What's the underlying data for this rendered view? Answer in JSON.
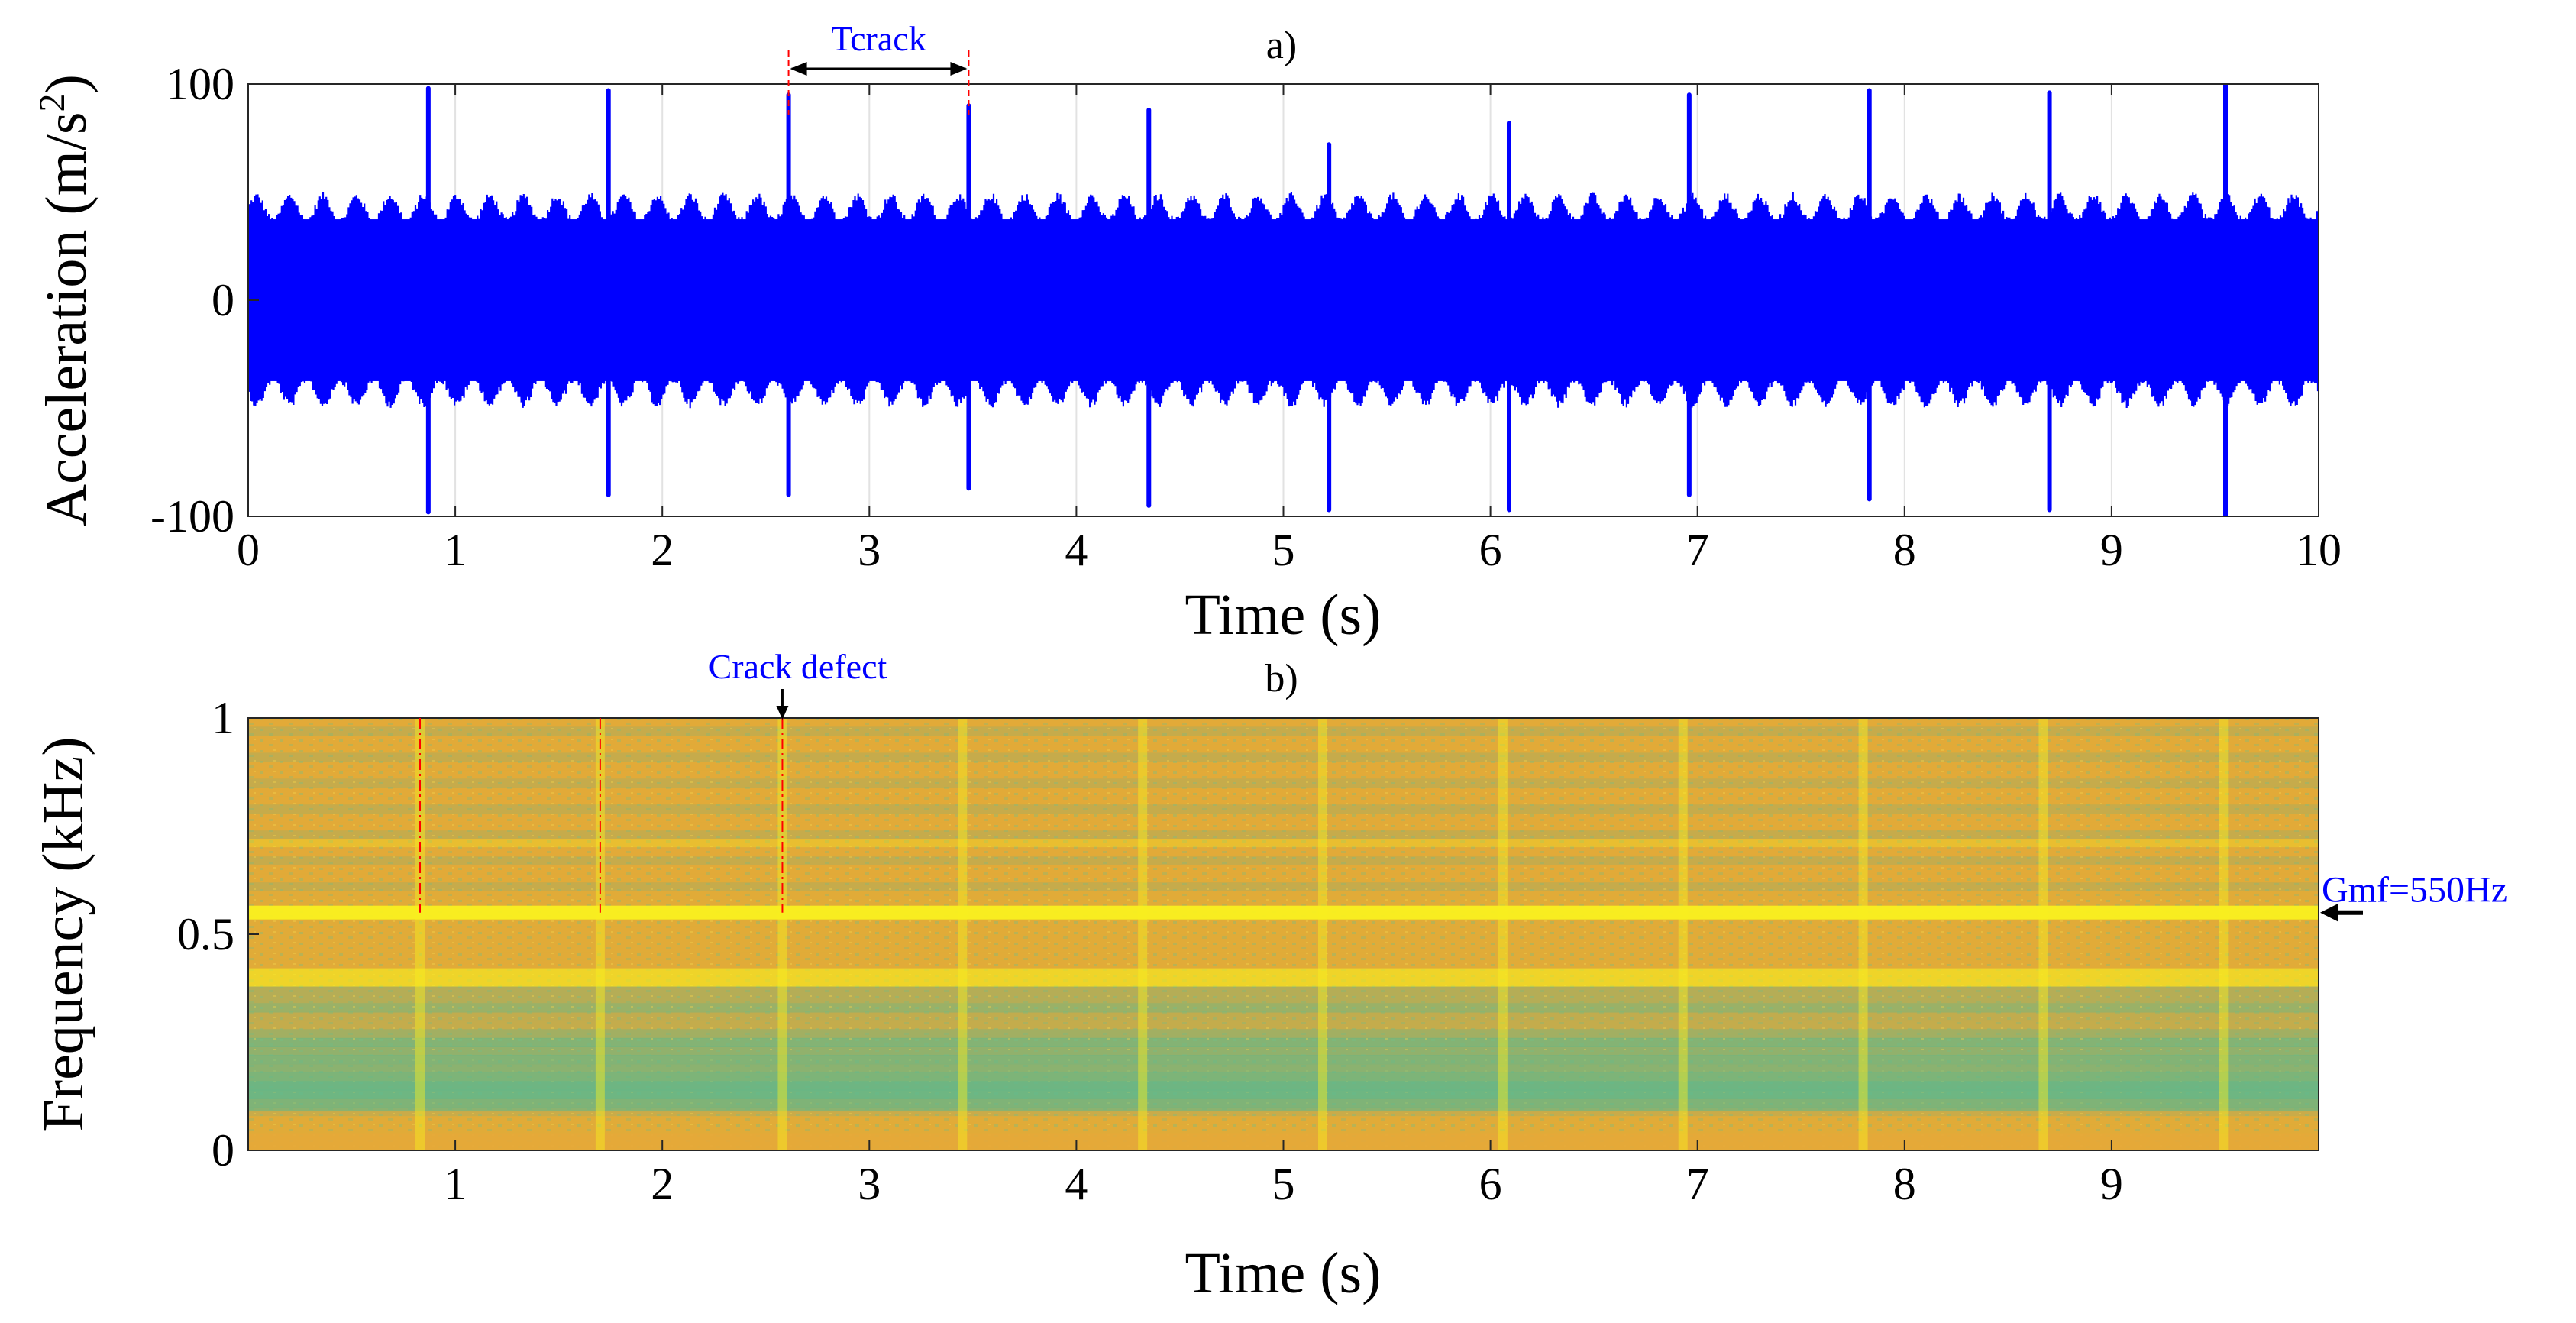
{
  "chart_data": [
    {
      "type": "line",
      "panel_label": "a)",
      "title": "",
      "xlabel": "Time (s)",
      "ylabel_main": "Acceleration (m/s",
      "ylabel_sup": "2",
      "ylabel_close": ")",
      "xlim": [
        0,
        10
      ],
      "ylim": [
        -100,
        100
      ],
      "xticks": [
        0,
        1,
        2,
        3,
        4,
        5,
        6,
        7,
        8,
        9,
        10
      ],
      "xtick_labels": [
        "0",
        "1",
        "2",
        "3",
        "4",
        "5",
        "6",
        "7",
        "8",
        "9",
        "10"
      ],
      "yticks": [
        -100,
        0,
        100
      ],
      "ytick_labels": [
        "-100",
        "0",
        "100"
      ],
      "grid": true,
      "series": [
        {
          "name": "Acceleration",
          "color": "#0000FF",
          "envelope_amplitude": 48,
          "impulse_times": [
            0.87,
            1.74,
            2.61,
            3.48,
            4.35,
            5.22,
            6.09,
            6.96,
            7.83,
            8.7,
            9.55
          ],
          "impulse_peaks_pos": [
            98,
            97,
            95,
            90,
            88,
            72,
            82,
            95,
            97,
            96,
            100
          ],
          "impulse_peaks_neg": [
            -98,
            -90,
            -90,
            -87,
            -95,
            -97,
            -97,
            -90,
            -92,
            -97,
            -100
          ]
        }
      ],
      "annotation": {
        "text": "Tcrack",
        "from_x": 2.61,
        "to_x": 3.48,
        "color": "#0000FF",
        "marker_color": "#FF0000"
      }
    },
    {
      "type": "heatmap",
      "panel_label": "b)",
      "title": "",
      "xlabel": "Time (s)",
      "ylabel": "Frequency (kHz)",
      "xlim": [
        0,
        10
      ],
      "ylim": [
        0,
        1
      ],
      "xticks": [
        1,
        2,
        3,
        4,
        5,
        6,
        7,
        8,
        9
      ],
      "xtick_labels": [
        "1",
        "2",
        "3",
        "4",
        "5",
        "6",
        "7",
        "8",
        "9"
      ],
      "yticks": [
        0,
        0.5,
        1
      ],
      "ytick_labels": [
        "0",
        "0.5",
        "1"
      ],
      "colors": {
        "base": "#E6A838",
        "mid": "#D8B23A",
        "low": "#58B890",
        "bright": "#F9F01F"
      },
      "bright_bands_khz": [
        0.55,
        0.4
      ],
      "impulse_times": [
        0.83,
        1.7,
        2.58,
        3.45,
        4.32,
        5.19,
        6.06,
        6.93,
        7.8,
        8.67,
        9.54
      ],
      "marker_times": [
        0.83,
        1.7,
        2.58
      ],
      "annotations": [
        {
          "text": "Crack defect",
          "x": 2.58,
          "color": "#0000FF"
        },
        {
          "text": "Gmf=550Hz",
          "y_khz": 0.55,
          "color": "#0000FF"
        }
      ]
    }
  ]
}
